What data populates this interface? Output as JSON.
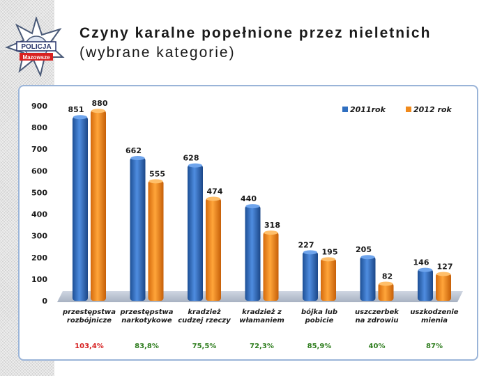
{
  "header": {
    "title_line1": "Czyny karalne popełnione przez nieletnich",
    "title_line2": "(wybrane kategorie)"
  },
  "logo": {
    "text_top": "POLICJA",
    "text_bottom": "Mazowsze"
  },
  "colors": {
    "series_2011": "#2f6fc0",
    "series_2012": "#f08a1c",
    "pct_first": "#d62020",
    "pct_other": "#2e7d1e"
  },
  "chart_data": {
    "type": "bar",
    "title": "Czyny karalne popełnione przez nieletnich (wybrane kategorie)",
    "categories": [
      [
        "przestępstwa",
        "rozbójnicze"
      ],
      [
        "przestępstwa",
        "narkotykowe"
      ],
      [
        "kradzież",
        "cudzej rzeczy"
      ],
      [
        "kradzież z",
        "włamaniem"
      ],
      [
        "bójka lub",
        "pobicie"
      ],
      [
        "uszczerbek",
        "na zdrowiu"
      ],
      [
        "uszkodzenie",
        "mienia"
      ]
    ],
    "series": [
      {
        "name": "2011rok",
        "values": [
          851,
          662,
          628,
          440,
          227,
          205,
          146
        ]
      },
      {
        "name": "2012 rok",
        "values": [
          880,
          555,
          474,
          318,
          195,
          82,
          127
        ]
      }
    ],
    "yticks": [
      0,
      100,
      200,
      300,
      400,
      500,
      600,
      700,
      800,
      900
    ],
    "ylim": [
      0,
      900
    ],
    "legend_position": "top-right",
    "percentages": [
      "103,4%",
      "83,8%",
      "75,5%",
      "72,3%",
      "85,9%",
      "40%",
      "87%"
    ]
  }
}
